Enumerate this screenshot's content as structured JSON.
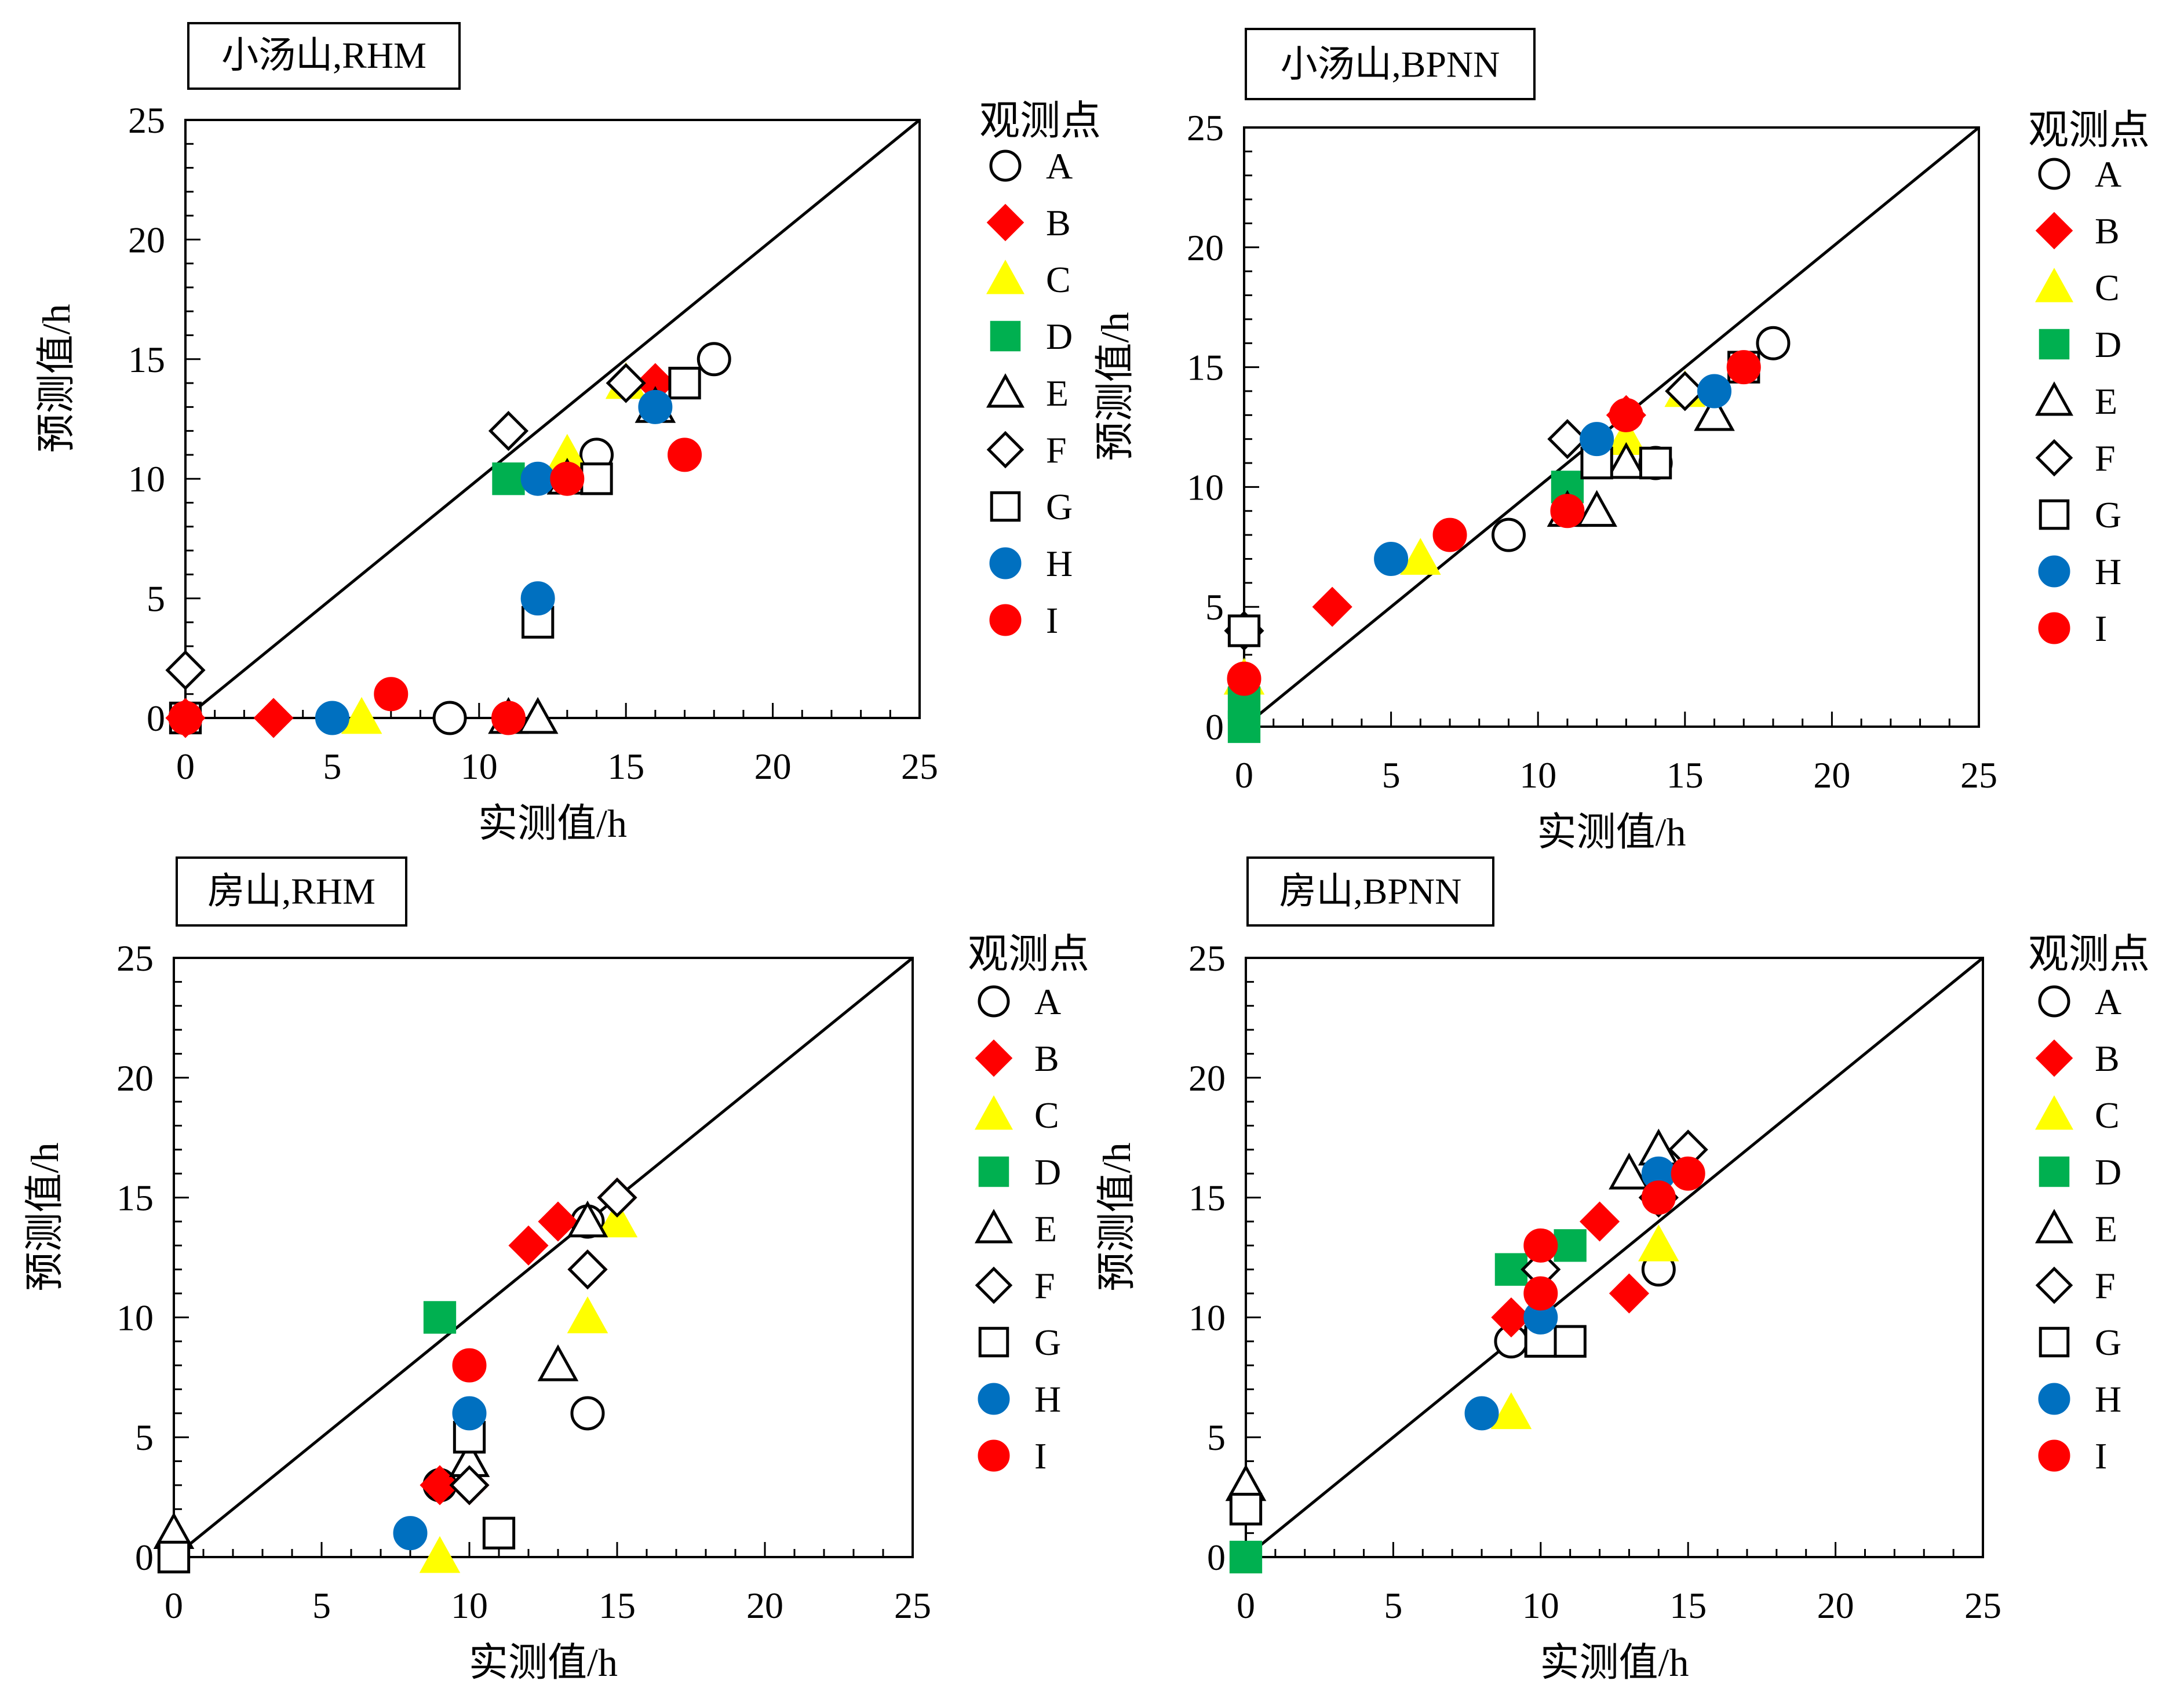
{
  "legend_title": "观测点",
  "x_label": "实测值/h",
  "y_label": "预测值/h",
  "series_styles": [
    {
      "name": "A",
      "marker": "circle",
      "fill": "#ffffff",
      "stroke": "#000000"
    },
    {
      "name": "B",
      "marker": "diamond",
      "fill": "#ff0000",
      "stroke": "#ff0000"
    },
    {
      "name": "C",
      "marker": "triangle",
      "fill": "#ffff00",
      "stroke": "#ffff00"
    },
    {
      "name": "D",
      "marker": "square",
      "fill": "#00b050",
      "stroke": "#00b050"
    },
    {
      "name": "E",
      "marker": "triangle",
      "fill": "#ffffff",
      "stroke": "#000000"
    },
    {
      "name": "F",
      "marker": "diamond",
      "fill": "#ffffff",
      "stroke": "#000000"
    },
    {
      "name": "G",
      "marker": "square",
      "fill": "#ffffff",
      "stroke": "#000000"
    },
    {
      "name": "H",
      "marker": "circle",
      "fill": "#0070c0",
      "stroke": "#0070c0"
    },
    {
      "name": "I",
      "marker": "circle",
      "fill": "#ff0000",
      "stroke": "#ff0000"
    }
  ],
  "chart_data": [
    {
      "type": "scatter",
      "title": "小汤山,RHM",
      "xlabel": "实测值/h",
      "ylabel": "预测值/h",
      "xlim": [
        0,
        25
      ],
      "ylim": [
        0,
        25
      ],
      "xticks": [
        0,
        5,
        10,
        15,
        20,
        25
      ],
      "yticks": [
        0,
        5,
        10,
        15,
        20,
        25
      ],
      "reference_line": "y = x",
      "legend_position": "right",
      "series": [
        {
          "name": "A",
          "points": [
            [
              0,
              0
            ],
            [
              9,
              0
            ],
            [
              14,
              11
            ],
            [
              18,
              15
            ]
          ]
        },
        {
          "name": "B",
          "points": [
            [
              0,
              0
            ],
            [
              3,
              0
            ],
            [
              16,
              14
            ]
          ]
        },
        {
          "name": "C",
          "points": [
            [
              6,
              0
            ],
            [
              13,
              11
            ],
            [
              15,
              14
            ]
          ]
        },
        {
          "name": "D",
          "points": [
            [
              11,
              10
            ]
          ]
        },
        {
          "name": "E",
          "points": [
            [
              11,
              0
            ],
            [
              12,
              0
            ],
            [
              13,
              10
            ],
            [
              16,
              13
            ]
          ]
        },
        {
          "name": "F",
          "points": [
            [
              0,
              2
            ],
            [
              11,
              12
            ],
            [
              15,
              14
            ]
          ]
        },
        {
          "name": "G",
          "points": [
            [
              0,
              0
            ],
            [
              12,
              4
            ],
            [
              14,
              10
            ],
            [
              17,
              14
            ]
          ]
        },
        {
          "name": "H",
          "points": [
            [
              5,
              0
            ],
            [
              12,
              5
            ],
            [
              12,
              10
            ],
            [
              16,
              13
            ]
          ]
        },
        {
          "name": "I",
          "points": [
            [
              0,
              0
            ],
            [
              7,
              1
            ],
            [
              11,
              0
            ],
            [
              13,
              10
            ],
            [
              17,
              11
            ]
          ]
        }
      ]
    },
    {
      "type": "scatter",
      "title": "小汤山,BPNN",
      "xlabel": "实测值/h",
      "ylabel": "预测值/h",
      "xlim": [
        0,
        25
      ],
      "ylim": [
        0,
        25
      ],
      "xticks": [
        0,
        5,
        10,
        15,
        20,
        25
      ],
      "yticks": [
        0,
        5,
        10,
        15,
        20,
        25
      ],
      "reference_line": "y = x",
      "legend_position": "right",
      "series": [
        {
          "name": "A",
          "points": [
            [
              9,
              8
            ],
            [
              14,
              11
            ],
            [
              18,
              16
            ]
          ]
        },
        {
          "name": "B",
          "points": [
            [
              3,
              5
            ],
            [
              13,
              13
            ]
          ]
        },
        {
          "name": "C",
          "points": [
            [
              0,
              2
            ],
            [
              6,
              7
            ],
            [
              13,
              12
            ],
            [
              15,
              14
            ]
          ]
        },
        {
          "name": "D",
          "points": [
            [
              0,
              0
            ],
            [
              0,
              1
            ],
            [
              11,
              10
            ]
          ]
        },
        {
          "name": "E",
          "points": [
            [
              11,
              9
            ],
            [
              12,
              9
            ],
            [
              13,
              11
            ],
            [
              16,
              13
            ]
          ]
        },
        {
          "name": "F",
          "points": [
            [
              0,
              4
            ],
            [
              11,
              12
            ],
            [
              15,
              14
            ]
          ]
        },
        {
          "name": "G",
          "points": [
            [
              0,
              4
            ],
            [
              12,
              11
            ],
            [
              14,
              11
            ],
            [
              17,
              15
            ]
          ]
        },
        {
          "name": "H",
          "points": [
            [
              5,
              7
            ],
            [
              12,
              12
            ],
            [
              16,
              14
            ]
          ]
        },
        {
          "name": "I",
          "points": [
            [
              0,
              2
            ],
            [
              7,
              8
            ],
            [
              11,
              9
            ],
            [
              13,
              13
            ],
            [
              17,
              15
            ]
          ]
        }
      ]
    },
    {
      "type": "scatter",
      "title": "房山,RHM",
      "xlabel": "实测值/h",
      "ylabel": "预测值/h",
      "xlim": [
        0,
        25
      ],
      "ylim": [
        0,
        25
      ],
      "xticks": [
        0,
        5,
        10,
        15,
        20,
        25
      ],
      "yticks": [
        0,
        5,
        10,
        15,
        20,
        25
      ],
      "reference_line": "y = x",
      "legend_position": "right",
      "series": [
        {
          "name": "A",
          "points": [
            [
              9,
              3
            ],
            [
              14,
              14
            ],
            [
              14,
              6
            ]
          ]
        },
        {
          "name": "B",
          "points": [
            [
              9,
              3
            ],
            [
              10,
              3
            ],
            [
              12,
              13
            ],
            [
              13,
              14
            ],
            [
              14,
              12
            ],
            [
              15,
              15
            ]
          ]
        },
        {
          "name": "C",
          "points": [
            [
              9,
              0
            ],
            [
              14,
              10
            ],
            [
              15,
              14
            ]
          ]
        },
        {
          "name": "D",
          "points": [
            [
              9,
              10
            ]
          ]
        },
        {
          "name": "E",
          "points": [
            [
              0,
              1
            ],
            [
              10,
              4
            ],
            [
              13,
              8
            ],
            [
              14,
              14
            ]
          ]
        },
        {
          "name": "F",
          "points": [
            [
              10,
              3
            ],
            [
              14,
              12
            ],
            [
              15,
              15
            ]
          ]
        },
        {
          "name": "G",
          "points": [
            [
              0,
              0
            ],
            [
              10,
              5
            ],
            [
              11,
              1
            ]
          ]
        },
        {
          "name": "H",
          "points": [
            [
              8,
              1
            ],
            [
              10,
              6
            ]
          ]
        },
        {
          "name": "I",
          "points": [
            [
              10,
              8
            ]
          ]
        }
      ]
    },
    {
      "type": "scatter",
      "title": "房山,BPNN",
      "xlabel": "实测值/h",
      "ylabel": "预测值/h",
      "xlim": [
        0,
        25
      ],
      "ylim": [
        0,
        25
      ],
      "xticks": [
        0,
        5,
        10,
        15,
        20,
        25
      ],
      "yticks": [
        0,
        5,
        10,
        15,
        20,
        25
      ],
      "reference_line": "y = x",
      "legend_position": "right",
      "series": [
        {
          "name": "A",
          "points": [
            [
              9,
              9
            ],
            [
              14,
              12
            ]
          ]
        },
        {
          "name": "B",
          "points": [
            [
              9,
              10
            ],
            [
              12,
              14
            ],
            [
              13,
              11
            ],
            [
              14,
              15
            ]
          ]
        },
        {
          "name": "C",
          "points": [
            [
              9,
              6
            ],
            [
              14,
              13
            ]
          ]
        },
        {
          "name": "D",
          "points": [
            [
              0,
              0
            ],
            [
              9,
              12
            ],
            [
              11,
              13
            ]
          ]
        },
        {
          "name": "E",
          "points": [
            [
              0,
              3
            ],
            [
              13,
              16
            ],
            [
              14,
              17
            ]
          ]
        },
        {
          "name": "F",
          "points": [
            [
              10,
              12
            ],
            [
              14,
              15
            ],
            [
              15,
              17
            ]
          ]
        },
        {
          "name": "G",
          "points": [
            [
              0,
              2
            ],
            [
              10,
              9
            ],
            [
              11,
              9
            ]
          ]
        },
        {
          "name": "H",
          "points": [
            [
              8,
              6
            ],
            [
              10,
              10
            ],
            [
              14,
              16
            ]
          ]
        },
        {
          "name": "I",
          "points": [
            [
              10,
              13
            ],
            [
              10,
              11
            ],
            [
              14,
              15
            ],
            [
              15,
              16
            ]
          ]
        }
      ]
    }
  ]
}
